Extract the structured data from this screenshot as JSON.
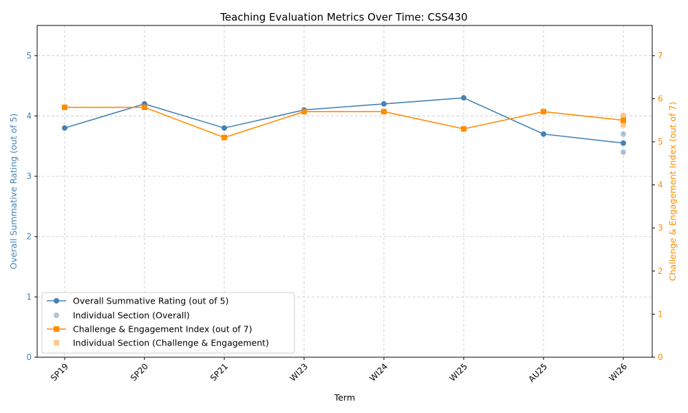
{
  "chart_data": {
    "type": "line",
    "title": "Teaching Evaluation Metrics Over Time: CSS430",
    "xlabel": "Term",
    "categories": [
      "SP19",
      "SP20",
      "SP21",
      "WI23",
      "WI24",
      "WI25",
      "AU25",
      "WI26"
    ],
    "left_axis": {
      "label": "Overall Summative Rating (out of 5)",
      "ylim": [
        0,
        5.5
      ],
      "ticks": [
        0,
        1,
        2,
        3,
        4,
        5
      ],
      "color": "#4682b4"
    },
    "right_axis": {
      "label": "Challenge & Engagement Index (out of 7)",
      "ylim": [
        0,
        7.7
      ],
      "ticks": [
        0,
        1,
        2,
        3,
        4,
        5,
        6,
        7
      ],
      "color": "#ff8c00"
    },
    "grid": true,
    "legend_position": "lower-left",
    "series": [
      {
        "name": "Overall Summative Rating (out of 5)",
        "axis": "left",
        "marker": "circle",
        "color": "#4682b4",
        "values": [
          3.8,
          4.2,
          3.8,
          4.1,
          4.2,
          4.3,
          3.7,
          3.55
        ]
      },
      {
        "name": "Challenge & Engagement Index (out of 7)",
        "axis": "right",
        "marker": "square",
        "color": "#ff8c00",
        "values": [
          5.8,
          5.8,
          5.1,
          5.7,
          5.7,
          5.3,
          5.7,
          5.5
        ]
      }
    ],
    "individual_sections": [
      {
        "name": "Individual Section (Overall)",
        "axis": "left",
        "marker": "circle",
        "color": "#4682b4",
        "points": [
          {
            "x": "WI26",
            "y": 3.7
          },
          {
            "x": "WI26",
            "y": 3.4
          }
        ]
      },
      {
        "name": "Individual Section (Challenge & Engagement)",
        "axis": "right",
        "marker": "square",
        "color": "#ff8c00",
        "points": [
          {
            "x": "WI26",
            "y": 5.6
          },
          {
            "x": "WI26",
            "y": 5.4
          }
        ]
      }
    ],
    "legend": [
      "Overall Summative Rating (out of 5)",
      "Individual Section (Overall)",
      "Challenge & Engagement Index (out of 7)",
      "Individual Section (Challenge & Engagement)"
    ]
  }
}
